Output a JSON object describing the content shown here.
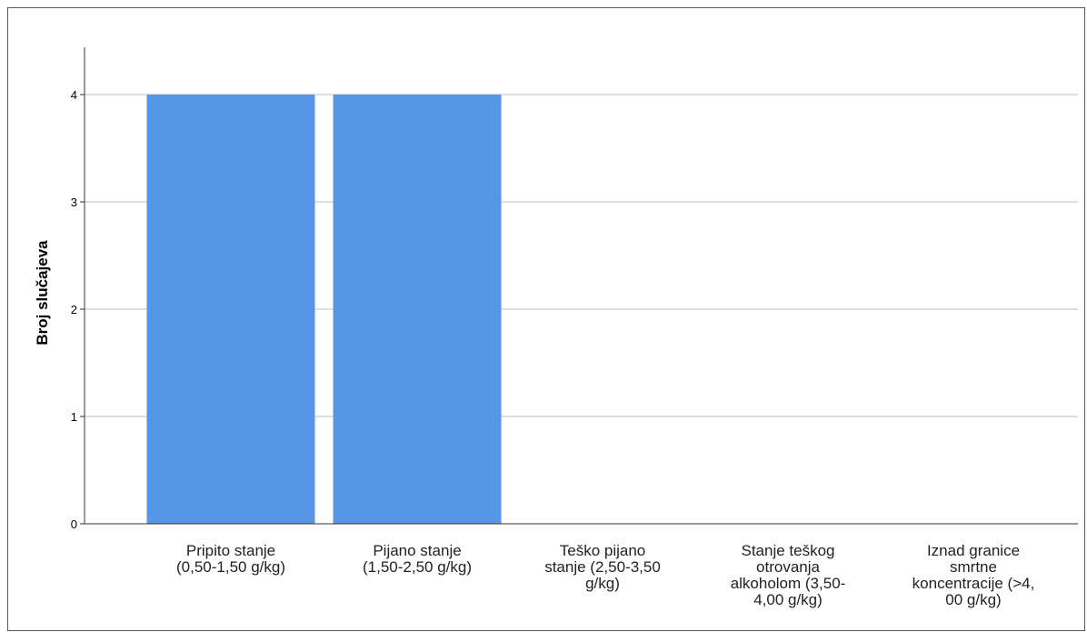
{
  "chart_data": {
    "type": "bar",
    "categories": [
      [
        "Pripito stanje",
        "(0,50-1,50 g/kg)"
      ],
      [
        "Pijano stanje",
        "(1,50-2,50 g/kg)"
      ],
      [
        "Teško pijano",
        "stanje (2,50-3,50",
        "g/kg)"
      ],
      [
        "Stanje teškog",
        "otrovanja",
        "alkoholom (3,50-",
        "4,00 g/kg)"
      ],
      [
        "Iznad granice",
        "smrtne",
        "koncentracije (>4,",
        "00 g/kg)"
      ]
    ],
    "values": [
      4,
      4,
      0,
      0,
      0
    ],
    "ylabel": "Broj slučajeva",
    "xlabel": "",
    "ylim": [
      0,
      4.4
    ],
    "yticks": [
      0,
      1,
      2,
      3,
      4
    ],
    "grid": true,
    "bar_color": "#5596e6",
    "grid_color": "#bdbdbd"
  }
}
